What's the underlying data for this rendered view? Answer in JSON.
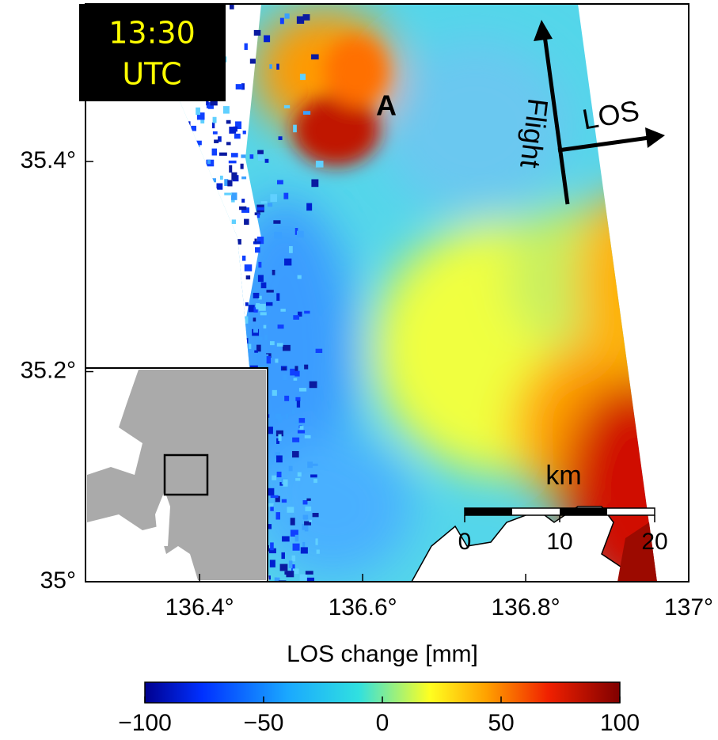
{
  "time_label": [
    "13:30",
    "UTC"
  ],
  "annotation": "A",
  "flight_label": "Flight",
  "los_label": "LOS",
  "scale_bar": {
    "unit": "km",
    "ticks": [
      0,
      10,
      20
    ]
  },
  "map": {
    "xlim": [
      136.26,
      137
    ],
    "ylim": [
      35,
      35.55
    ],
    "xticks": [
      {
        "value": 136.4,
        "label": "136.4°"
      },
      {
        "value": 136.6,
        "label": "136.6°"
      },
      {
        "value": 136.8,
        "label": "136.8°"
      },
      {
        "value": 137,
        "label": "137°"
      }
    ],
    "yticks": [
      {
        "value": 35,
        "label": "35°"
      },
      {
        "value": 35.2,
        "label": "35.2°"
      },
      {
        "value": 35.4,
        "label": "35.4°"
      }
    ]
  },
  "colorbar": {
    "label": "LOS change [mm]",
    "lim": [
      -100,
      100
    ],
    "ticks": [
      {
        "value": -100,
        "label": "−100"
      },
      {
        "value": -50,
        "label": "−50"
      },
      0,
      50,
      100
    ]
  }
}
